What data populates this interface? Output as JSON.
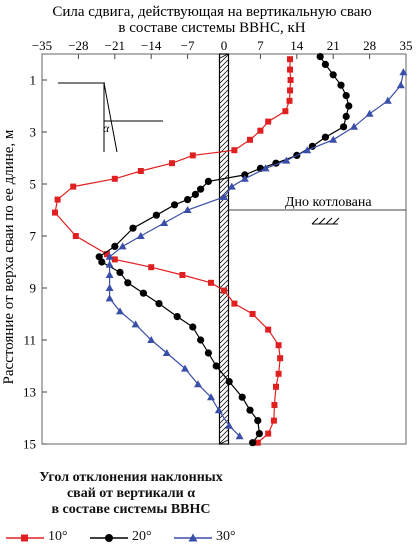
{
  "chart_data": {
    "type": "line",
    "title_lines": [
      "Сила сдвига, действующая на вертикальную сваю",
      "в составе системы ВВНС, кН"
    ],
    "xlabel": "",
    "ylabel": "Расстояние от верха сваи по ее длине, м",
    "xlim": [
      -35,
      35
    ],
    "ylim": [
      0,
      15
    ],
    "x_ticks": [
      -35,
      -28,
      -21,
      -14,
      -7,
      0,
      7,
      14,
      21,
      28,
      35
    ],
    "y_ticks": [
      1,
      3,
      5,
      7,
      9,
      11,
      13,
      15
    ],
    "annotation": "Дно котлована",
    "annotation_depth": 6,
    "inset_label": "α",
    "legend_title": [
      "Угол отклонения наклонных",
      "свай от вертикали α",
      "в составе системы ВВНС"
    ],
    "series": [
      {
        "name": "10°",
        "color": "#e02020",
        "marker": "square",
        "points": [
          [
            12.7,
            0.2
          ],
          [
            12.7,
            0.6
          ],
          [
            12.8,
            1.0
          ],
          [
            12.7,
            1.4
          ],
          [
            12.6,
            1.8
          ],
          [
            11.8,
            2.2
          ],
          [
            8.5,
            2.6
          ],
          [
            7.0,
            2.95
          ],
          [
            5.0,
            3.3
          ],
          [
            2.0,
            3.7
          ],
          [
            -6.0,
            3.9
          ],
          [
            -10.0,
            4.2
          ],
          [
            -16.0,
            4.5
          ],
          [
            -21.0,
            4.8
          ],
          [
            -29.0,
            5.1
          ],
          [
            -32.0,
            5.6
          ],
          [
            -32.5,
            6.1
          ],
          [
            -28.5,
            7.0
          ],
          [
            -22.5,
            7.7
          ],
          [
            -21.0,
            7.9
          ],
          [
            -14.0,
            8.2
          ],
          [
            -8.0,
            8.5
          ],
          [
            -2.5,
            8.8
          ],
          [
            0.0,
            9.1
          ],
          [
            2.0,
            9.6
          ],
          [
            5.5,
            10.0
          ],
          [
            8.5,
            10.6
          ],
          [
            10.5,
            11.2
          ],
          [
            10.8,
            11.7
          ],
          [
            10.5,
            12.3
          ],
          [
            10.0,
            12.8
          ],
          [
            9.7,
            13.5
          ],
          [
            9.6,
            14.1
          ],
          [
            8.5,
            14.6
          ],
          [
            6.5,
            14.95
          ]
        ]
      },
      {
        "name": "20°",
        "color": "#000000",
        "marker": "circle",
        "points": [
          [
            18.5,
            0.1
          ],
          [
            19.5,
            0.4
          ],
          [
            21.0,
            0.8
          ],
          [
            22.5,
            1.2
          ],
          [
            23.5,
            1.6
          ],
          [
            24.0,
            2.0
          ],
          [
            23.5,
            2.4
          ],
          [
            23.0,
            2.8
          ],
          [
            19.5,
            3.2
          ],
          [
            17.0,
            3.55
          ],
          [
            14.0,
            3.9
          ],
          [
            10.0,
            4.2
          ],
          [
            7.0,
            4.4
          ],
          [
            4.0,
            4.65
          ],
          [
            -3.0,
            4.9
          ],
          [
            -4.5,
            5.2
          ],
          [
            -5.5,
            5.4
          ],
          [
            -7.0,
            5.6
          ],
          [
            -9.5,
            5.8
          ],
          [
            -13.0,
            6.2
          ],
          [
            -17.5,
            6.7
          ],
          [
            -21.0,
            7.4
          ],
          [
            -24.0,
            7.8
          ],
          [
            -23.5,
            8.0
          ],
          [
            -20.0,
            8.4
          ],
          [
            -18.5,
            8.8
          ],
          [
            -15.5,
            9.2
          ],
          [
            -12.5,
            9.6
          ],
          [
            -9.0,
            10.1
          ],
          [
            -6.0,
            10.5
          ],
          [
            -4.5,
            11.0
          ],
          [
            -3.0,
            11.5
          ],
          [
            -1.5,
            12.0
          ],
          [
            1.0,
            12.6
          ],
          [
            3.5,
            13.2
          ],
          [
            5.0,
            13.7
          ],
          [
            6.5,
            14.1
          ],
          [
            6.8,
            14.6
          ],
          [
            5.5,
            14.95
          ]
        ]
      },
      {
        "name": "30°",
        "color": "#3a4fa8",
        "marker": "triangle",
        "points": [
          [
            34.5,
            0.7
          ],
          [
            34.0,
            1.2
          ],
          [
            31.5,
            1.8
          ],
          [
            28.0,
            2.3
          ],
          [
            25.0,
            2.8
          ],
          [
            21.0,
            3.3
          ],
          [
            16.0,
            3.7
          ],
          [
            12.0,
            4.1
          ],
          [
            8.0,
            4.4
          ],
          [
            4.0,
            4.8
          ],
          [
            1.5,
            5.1
          ],
          [
            0.0,
            5.5
          ],
          [
            -7.0,
            6.0
          ],
          [
            -11.5,
            6.5
          ],
          [
            -16.0,
            7.0
          ],
          [
            -19.5,
            7.4
          ],
          [
            -22.0,
            7.8
          ],
          [
            -22.0,
            8.1
          ],
          [
            -22.0,
            8.5
          ],
          [
            -22.0,
            9.0
          ],
          [
            -22.0,
            9.4
          ],
          [
            -20.0,
            9.9
          ],
          [
            -17.0,
            10.4
          ],
          [
            -14.0,
            11.0
          ],
          [
            -11.0,
            11.5
          ],
          [
            -7.5,
            12.1
          ],
          [
            -5.0,
            12.7
          ],
          [
            -2.5,
            13.2
          ],
          [
            -1.0,
            13.7
          ],
          [
            1.0,
            14.3
          ],
          [
            3.0,
            14.7
          ]
        ]
      }
    ]
  }
}
